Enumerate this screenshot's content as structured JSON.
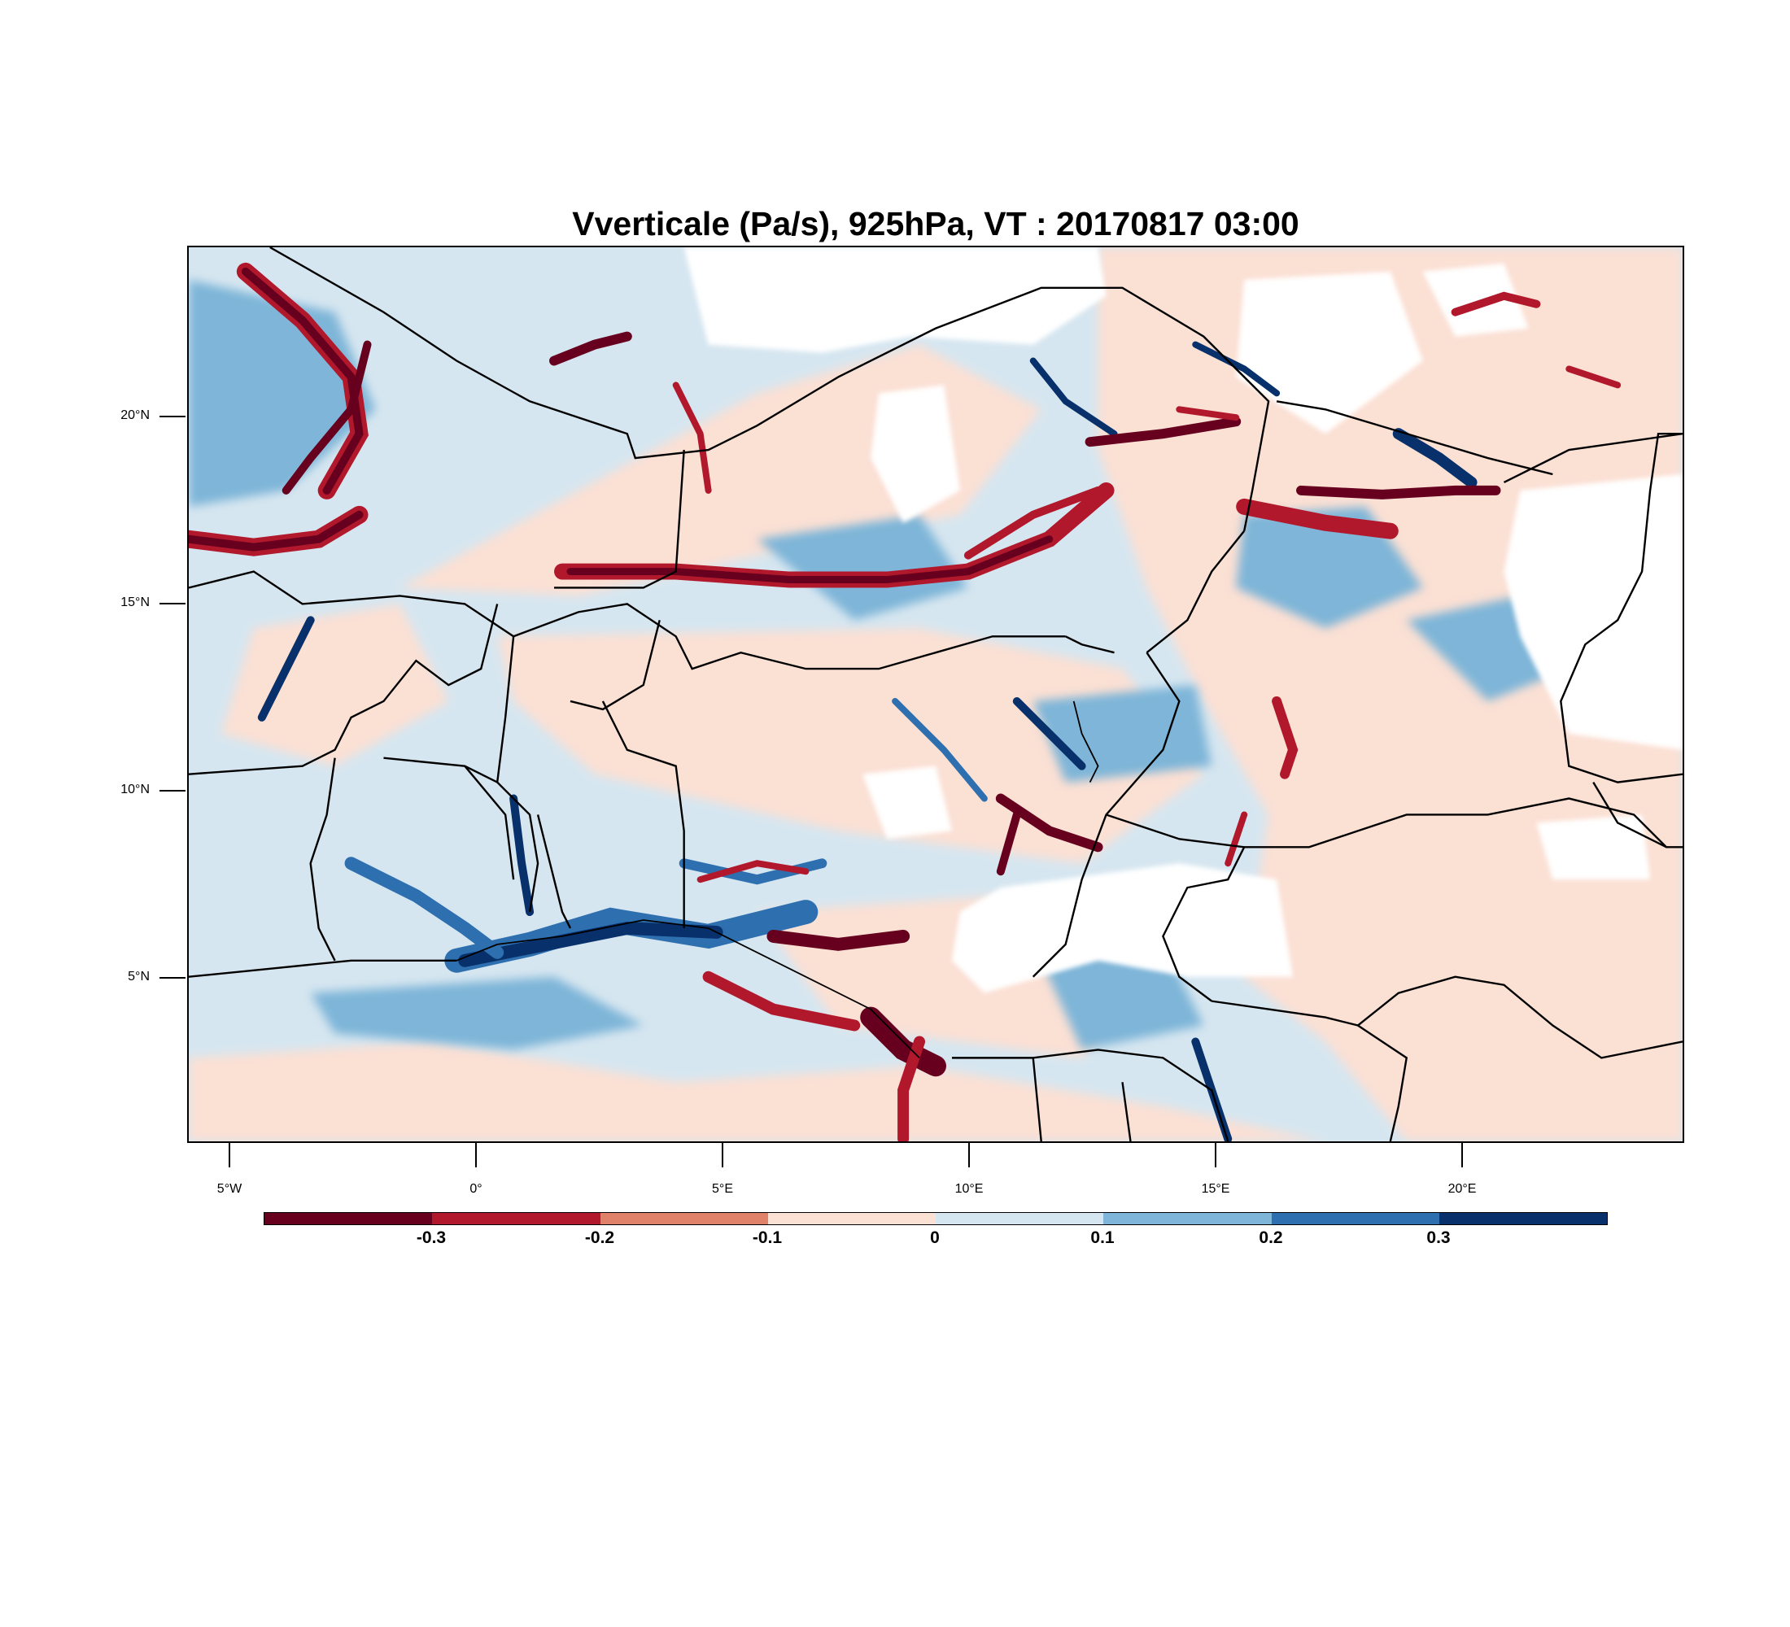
{
  "title": "Vverticale (Pa/s), 925hPa, VT : 20170817  03:00",
  "map": {
    "lon_range": [
      -6,
      24.2
    ],
    "lat_range": [
      0.6,
      24.6
    ],
    "lat_ticks": [
      {
        "value": 20,
        "label": "20°N"
      },
      {
        "value": 15,
        "label": "15°N"
      },
      {
        "value": 10,
        "label": "10°N"
      },
      {
        "value": 5,
        "label": "5°N"
      }
    ],
    "lon_ticks": [
      {
        "value": -5,
        "label": "5°W"
      },
      {
        "value": 0,
        "label": "0°"
      },
      {
        "value": 5,
        "label": "5°E"
      },
      {
        "value": 10,
        "label": "10°E"
      },
      {
        "value": 15,
        "label": "15°E"
      },
      {
        "value": 20,
        "label": "20°E"
      }
    ]
  },
  "colorbar": {
    "colors": [
      "#67001f",
      "#b2182b",
      "#e0826a",
      "#fbe0d4",
      "#d6e6f0",
      "#7eb5d8",
      "#2e6fb0",
      "#08306b"
    ],
    "labels": [
      "-0.3",
      "-0.2",
      "-0.1",
      "0",
      "0.1",
      "0.2",
      "0.3"
    ]
  }
}
